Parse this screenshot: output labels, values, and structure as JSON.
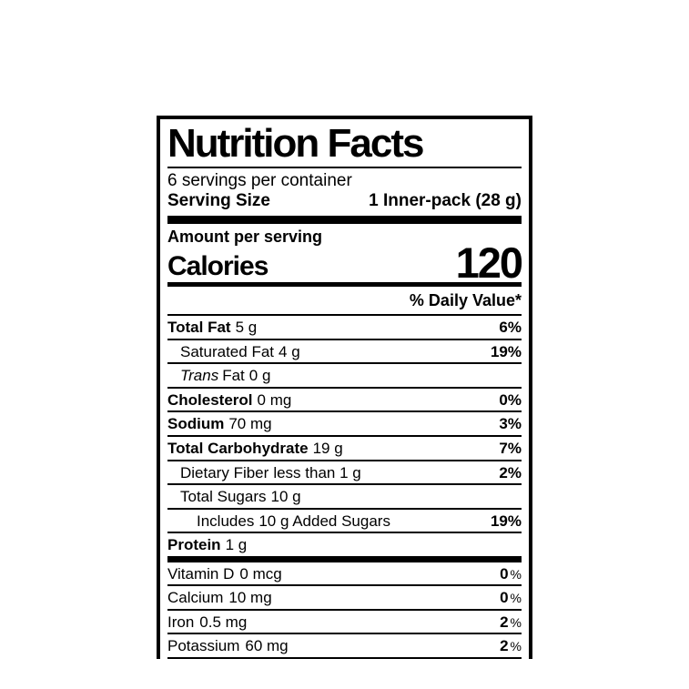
{
  "label": {
    "title": "Nutrition Facts",
    "servings_per_container": "6 servings per container",
    "serving_size_label": "Serving Size",
    "serving_size_value": "1 Inner-pack (28 g)",
    "amount_per_serving": "Amount per serving",
    "calories_label": "Calories",
    "calories_value": "120",
    "daily_value_header": "% Daily Value*",
    "percent_sign": "%",
    "colors": {
      "ink": "#000000",
      "background": "#ffffff"
    },
    "nutrients": [
      {
        "italic": "",
        "name": "Total Fat",
        "amount": "5 g",
        "dv": "6%"
      },
      {
        "italic": "",
        "name": "Saturated Fat",
        "amount": "4 g",
        "dv": "19%"
      },
      {
        "italic": "Trans",
        "name": "Fat",
        "amount": "0 g",
        "dv": ""
      },
      {
        "italic": "",
        "name": "Cholesterol",
        "amount": "0 mg",
        "dv": "0%"
      },
      {
        "italic": "",
        "name": "Sodium",
        "amount": "70 mg",
        "dv": "3%"
      },
      {
        "italic": "",
        "name": "Total Carbohydrate",
        "amount": "19 g",
        "dv": "7%"
      },
      {
        "italic": "",
        "name": "Dietary Fiber",
        "amount": "less than 1 g",
        "dv": "2%"
      },
      {
        "italic": "",
        "name": "Total Sugars",
        "amount": "10 g",
        "dv": ""
      },
      {
        "italic": "",
        "name": "Includes",
        "amount": "10 g Added Sugars",
        "dv": "19%"
      },
      {
        "italic": "",
        "name": "Protein",
        "amount": "1 g",
        "dv": ""
      }
    ],
    "vitamins": [
      {
        "name": "Vitamin D",
        "amount": "0 mcg",
        "dv": "0"
      },
      {
        "name": "Calcium",
        "amount": "10 mg",
        "dv": "0"
      },
      {
        "name": "Iron",
        "amount": "0.5 mg",
        "dv": "2"
      },
      {
        "name": "Potassium",
        "amount": "60 mg",
        "dv": "2"
      }
    ]
  }
}
